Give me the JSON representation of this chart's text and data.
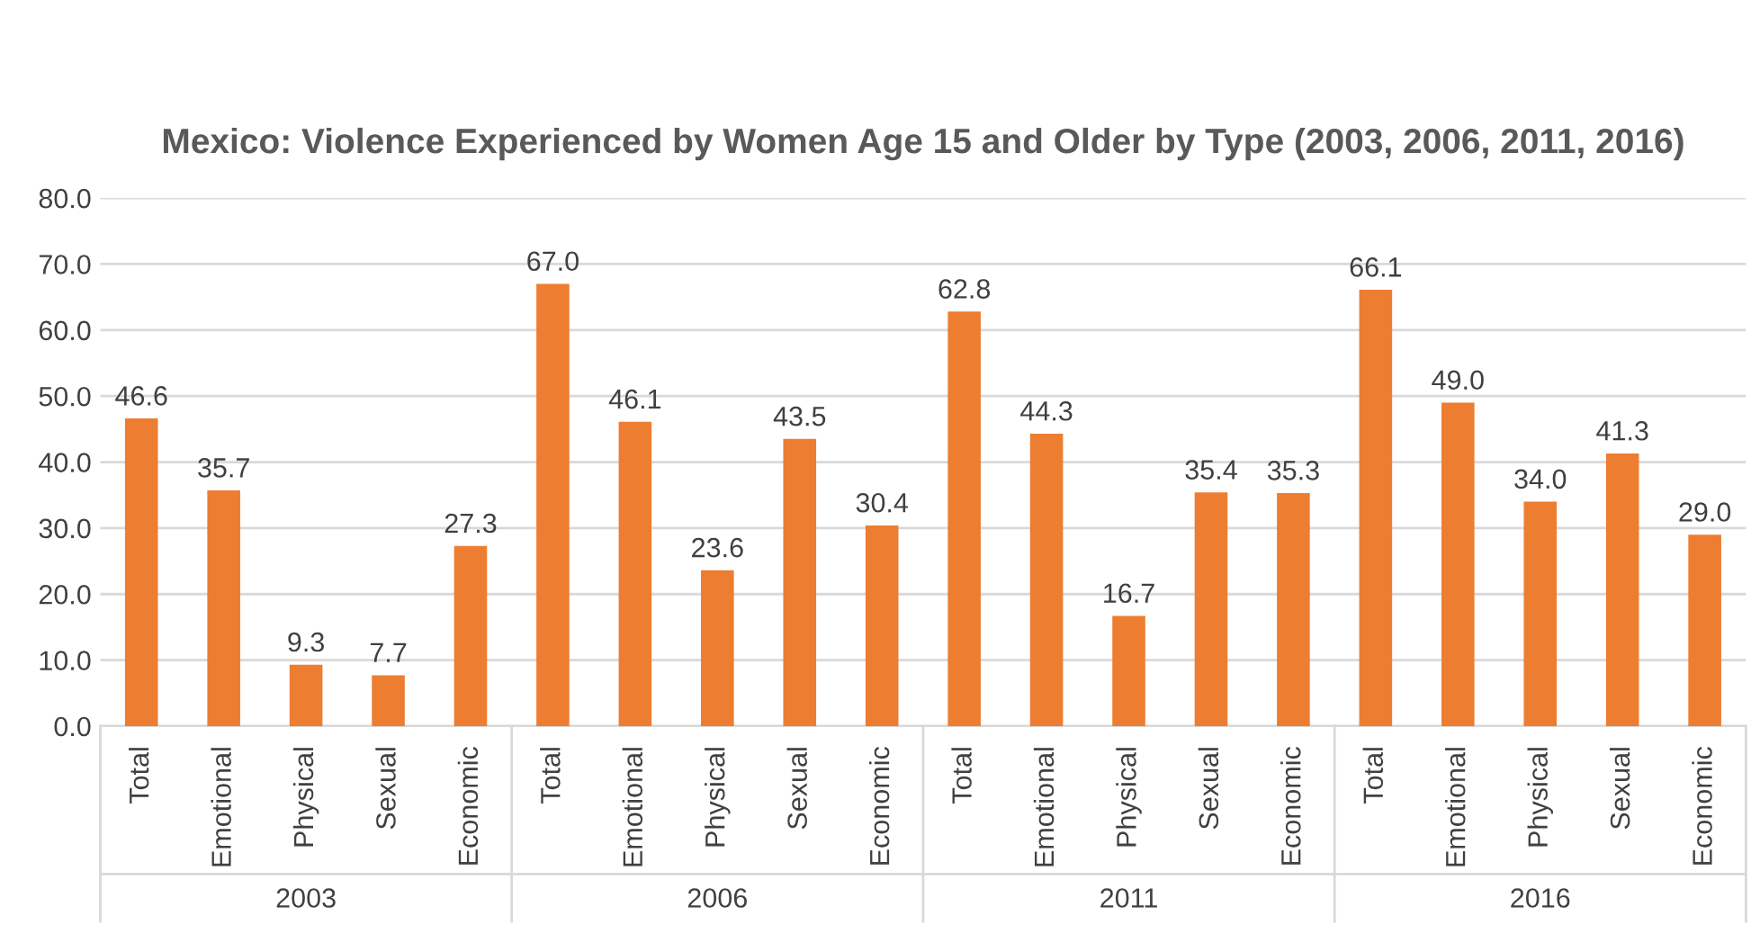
{
  "chart_data": {
    "type": "bar",
    "title": "Mexico: Violence Experienced by Women Age 15 and Older by Type (2003, 2006, 2011, 2016)",
    "categories": [
      "Total",
      "Emotional",
      "Physical",
      "Sexual",
      "Economic",
      "Total",
      "Emotional",
      "Physical",
      "Sexual",
      "Economic",
      "Total",
      "Emotional",
      "Physical",
      "Sexual",
      "Economic",
      "Total",
      "Emotional",
      "Physical",
      "Sexual",
      "Economic"
    ],
    "values": [
      46.6,
      35.7,
      9.3,
      7.7,
      27.3,
      67.0,
      46.1,
      23.6,
      43.5,
      30.4,
      62.8,
      44.3,
      16.7,
      35.4,
      35.3,
      66.1,
      49.0,
      34.0,
      41.3,
      29.0
    ],
    "value_labels": [
      "46.6",
      "35.7",
      "9.3",
      "7.7",
      "27.3",
      "67.0",
      "46.1",
      "23.6",
      "43.5",
      "30.4",
      "62.8",
      "44.3",
      "16.7",
      "35.4",
      "35.3",
      "66.1",
      "49.0",
      "34.0",
      "41.3",
      "29.0"
    ],
    "color": "#ed7d31",
    "annotations": [
      "2003",
      "2006",
      "2011",
      "2016"
    ],
    "ylim": [
      0,
      80
    ],
    "yticks": [
      {
        "value": 0,
        "label": "0.0"
      },
      {
        "value": 10,
        "label": "10.0"
      },
      {
        "value": 20,
        "label": "20.0"
      },
      {
        "value": 30,
        "label": "30.0"
      },
      {
        "value": 40,
        "label": "40.0"
      },
      {
        "value": 50,
        "label": "50.0"
      },
      {
        "value": 60,
        "label": "60.0"
      },
      {
        "value": 70,
        "label": "70.0"
      },
      {
        "value": 80,
        "label": "80.0"
      }
    ],
    "grid": "y",
    "legend": false
  }
}
